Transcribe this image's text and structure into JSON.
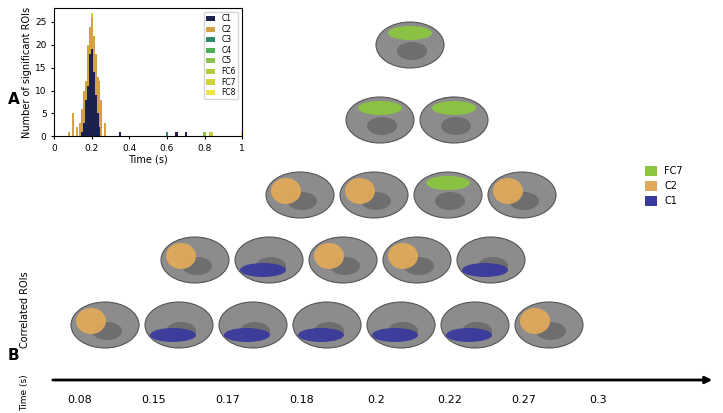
{
  "panel_labels": [
    "A",
    "B"
  ],
  "chart_data": {
    "type": "bar",
    "xlabel": "Time (s)",
    "ylabel": "Number of significant ROIs",
    "x": [
      0.08,
      0.1,
      0.12,
      0.14,
      0.15,
      0.16,
      0.17,
      0.18,
      0.19,
      0.2,
      0.21,
      0.22,
      0.23,
      0.24,
      0.25,
      0.27,
      0.35,
      0.6,
      0.65,
      0.7,
      0.8,
      0.83,
      0.84,
      1.0
    ],
    "series": [
      {
        "name": "C1",
        "color": "#1c2150",
        "values": [
          0,
          0,
          0,
          0,
          1,
          3,
          8,
          11,
          18,
          19,
          14,
          9,
          5,
          2,
          0,
          0,
          1,
          0,
          1,
          1,
          0,
          0,
          0,
          0
        ]
      },
      {
        "name": "C2",
        "color": "#d4a245",
        "values": [
          1,
          5,
          2,
          3,
          6,
          10,
          12,
          20,
          24,
          26,
          22,
          18,
          13,
          12,
          8,
          3,
          0,
          0,
          0,
          0,
          0,
          0,
          0,
          0
        ]
      },
      {
        "name": "C3",
        "color": "#2e8b6e",
        "values": [
          0,
          0,
          0,
          0,
          0,
          0,
          0,
          0,
          0,
          0,
          0,
          0,
          0,
          0,
          0,
          0,
          0,
          1,
          0,
          0,
          0,
          0,
          0,
          0
        ]
      },
      {
        "name": "C4",
        "color": "#4caf50",
        "values": [
          0,
          0,
          0,
          0,
          0,
          0,
          0,
          0,
          0,
          0,
          0,
          0,
          0,
          0,
          0,
          0,
          0,
          0,
          1,
          0,
          0,
          0,
          0,
          0
        ]
      },
      {
        "name": "C5",
        "color": "#8bc34a",
        "values": [
          0,
          0,
          0,
          0,
          0,
          0,
          0,
          0,
          0,
          0,
          0,
          0,
          0,
          0,
          0,
          0,
          0,
          0,
          0,
          0,
          1,
          0,
          0,
          0
        ]
      },
      {
        "name": "FC6",
        "color": "#b5cc3a",
        "values": [
          0,
          0,
          0,
          0,
          0,
          0,
          0,
          0,
          0,
          0,
          0,
          0,
          0,
          0,
          0,
          0,
          0,
          0,
          0,
          0,
          0,
          1,
          0,
          0
        ]
      },
      {
        "name": "FC7",
        "color": "#cfd33a",
        "values": [
          0,
          0,
          0,
          0,
          0,
          0,
          0,
          0,
          0,
          27,
          0,
          0,
          0,
          0,
          0,
          0,
          0,
          0,
          0,
          0,
          0,
          0,
          1,
          0
        ]
      },
      {
        "name": "FC8",
        "color": "#f0e442",
        "values": [
          0,
          0,
          0,
          0,
          0,
          0,
          0,
          0,
          0,
          0,
          0,
          0,
          0,
          0,
          0,
          0,
          0,
          0,
          0,
          0,
          0,
          0,
          0,
          1
        ]
      }
    ],
    "xlim": [
      0,
      1
    ],
    "xticks": [
      0,
      0.2,
      0.4,
      0.6,
      0.8,
      1
    ],
    "ylim": [
      0,
      28
    ],
    "yticks": [
      0,
      5,
      10,
      15,
      20,
      25
    ],
    "grid": false,
    "legend": "upper right"
  },
  "brain_panel": {
    "ylabel": "Correlated ROIs",
    "time_label": "Time (s)",
    "times": [
      0.08,
      0.15,
      0.17,
      0.18,
      0.2,
      0.22,
      0.27,
      0.3
    ],
    "clusters": [
      {
        "name": "FC7",
        "color": "#8dc63f"
      },
      {
        "name": "C2",
        "color": "#e0a95a"
      },
      {
        "name": "C1",
        "color": "#3a3a9e"
      }
    ],
    "rows": [
      [
        "C2",
        "C1",
        "C1",
        "C1",
        "C1",
        "C1",
        "C2"
      ],
      [
        "C2",
        "C1",
        "C2",
        "C2",
        "C1"
      ],
      [
        "C2",
        "C2",
        "FC7",
        "C2"
      ],
      [
        "FC7",
        "FC7"
      ],
      [
        "FC7"
      ]
    ]
  }
}
